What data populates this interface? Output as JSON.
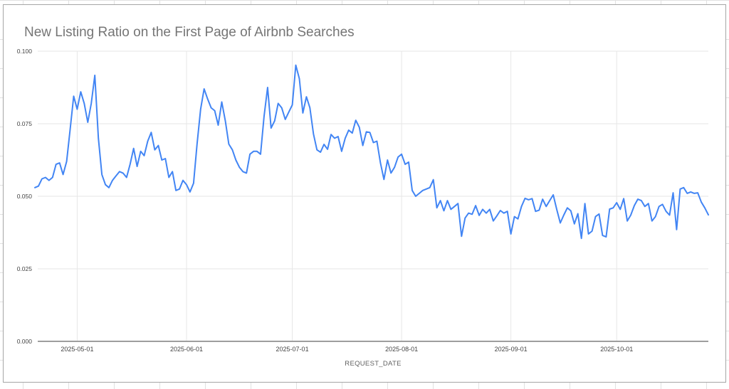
{
  "chart_data": {
    "type": "line",
    "title": "New Listing Ratio on the First Page of Airbnb Searches",
    "xlabel": "REQUEST_DATE",
    "ylabel": "",
    "x_start_date": "2025-04-19",
    "x_end_date": "2025-10-27",
    "frequency": "daily",
    "ylim": [
      0.0,
      0.1
    ],
    "grid": true,
    "legend": "none",
    "series_name": "new_listing_ratio",
    "values": [
      0.053,
      0.0535,
      0.056,
      0.0565,
      0.0555,
      0.0565,
      0.061,
      0.0615,
      0.0575,
      0.062,
      0.073,
      0.0845,
      0.08,
      0.086,
      0.082,
      0.0755,
      0.082,
      0.0917,
      0.07,
      0.0575,
      0.054,
      0.053,
      0.0555,
      0.057,
      0.0585,
      0.058,
      0.0565,
      0.061,
      0.0665,
      0.0603,
      0.0655,
      0.064,
      0.069,
      0.072,
      0.066,
      0.0675,
      0.0625,
      0.063,
      0.0565,
      0.0585,
      0.052,
      0.0525,
      0.0555,
      0.054,
      0.0515,
      0.0545,
      0.068,
      0.08,
      0.087,
      0.0835,
      0.0805,
      0.0795,
      0.0745,
      0.0825,
      0.076,
      0.068,
      0.066,
      0.0625,
      0.06,
      0.0585,
      0.058,
      0.0645,
      0.0655,
      0.0655,
      0.0645,
      0.0775,
      0.0875,
      0.0735,
      0.076,
      0.082,
      0.0805,
      0.0765,
      0.079,
      0.0815,
      0.0952,
      0.0905,
      0.0787,
      0.0843,
      0.0805,
      0.0715,
      0.066,
      0.0652,
      0.0679,
      0.0662,
      0.0713,
      0.07,
      0.0706,
      0.0655,
      0.07,
      0.0728,
      0.0718,
      0.0762,
      0.0738,
      0.0675,
      0.0722,
      0.072,
      0.0685,
      0.069,
      0.0615,
      0.0558,
      0.0625,
      0.058,
      0.06,
      0.0635,
      0.0645,
      0.061,
      0.0618,
      0.052,
      0.05,
      0.051,
      0.052,
      0.0525,
      0.053,
      0.0557,
      0.046,
      0.0485,
      0.045,
      0.0485,
      0.0455,
      0.0465,
      0.0475,
      0.0362,
      0.0425,
      0.0442,
      0.0438,
      0.0468,
      0.0434,
      0.0455,
      0.0442,
      0.0455,
      0.0415,
      0.0432,
      0.0451,
      0.0442,
      0.0448,
      0.037,
      0.043,
      0.0422,
      0.0465,
      0.0493,
      0.0488,
      0.0492,
      0.0448,
      0.0452,
      0.049,
      0.0465,
      0.0485,
      0.0505,
      0.0455,
      0.0408,
      0.0435,
      0.046,
      0.045,
      0.0405,
      0.044,
      0.0355,
      0.0475,
      0.037,
      0.038,
      0.043,
      0.0439,
      0.0365,
      0.036,
      0.0456,
      0.046,
      0.0478,
      0.0455,
      0.0492,
      0.0415,
      0.0435,
      0.0468,
      0.049,
      0.0485,
      0.0465,
      0.0475,
      0.0415,
      0.043,
      0.0465,
      0.0472,
      0.0448,
      0.0435,
      0.0512,
      0.0385,
      0.0525,
      0.053,
      0.051,
      0.0515,
      0.051,
      0.0512,
      0.048,
      0.046,
      0.0436
    ],
    "y_ticks": [
      {
        "label": "0.000",
        "value": 0.0
      },
      {
        "label": "0.025",
        "value": 0.025
      },
      {
        "label": "0.050",
        "value": 0.05
      },
      {
        "label": "0.075",
        "value": 0.075
      },
      {
        "label": "0.100",
        "value": 0.1
      }
    ],
    "x_ticks": [
      {
        "label": "2025-05-01",
        "day_index": 12
      },
      {
        "label": "2025-06-01",
        "day_index": 43
      },
      {
        "label": "2025-07-01",
        "day_index": 73
      },
      {
        "label": "2025-08-01",
        "day_index": 104
      },
      {
        "label": "2025-09-01",
        "day_index": 135
      },
      {
        "label": "2025-10-01",
        "day_index": 165
      }
    ],
    "colors": {
      "series": "#4285f4",
      "title": "#757575",
      "axis_title": "#616161",
      "tick_label": "#444444",
      "gridline": "#e6e6e6",
      "axis_line": "#9e9e9e",
      "card_border": "#a6a6a6",
      "background": "#ffffff"
    }
  }
}
